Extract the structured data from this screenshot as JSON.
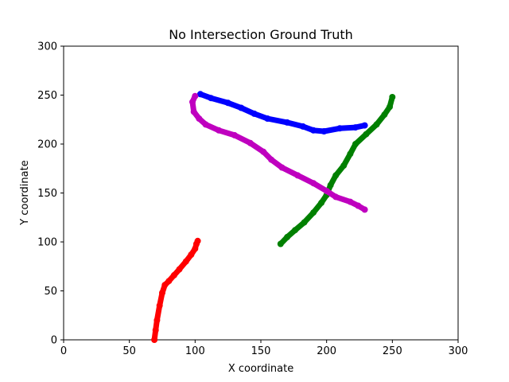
{
  "chart_data": {
    "type": "scatter",
    "title": "No Intersection Ground Truth",
    "xlabel": "X coordinate",
    "ylabel": "Y coordinate",
    "xlim": [
      0,
      300
    ],
    "ylim": [
      0,
      300
    ],
    "xticks": [
      0,
      50,
      100,
      150,
      200,
      250,
      300
    ],
    "yticks": [
      0,
      50,
      100,
      150,
      200,
      250,
      300
    ],
    "grid": false,
    "legend": "none",
    "series": [
      {
        "color": "#ff0000",
        "points": [
          [
            69,
            0
          ],
          [
            70,
            10
          ],
          [
            71,
            20
          ],
          [
            73,
            35
          ],
          [
            75,
            48
          ],
          [
            77,
            56
          ],
          [
            80,
            60
          ],
          [
            84,
            66
          ],
          [
            88,
            72
          ],
          [
            93,
            80
          ],
          [
            97,
            87
          ],
          [
            100,
            93
          ],
          [
            101,
            98
          ],
          [
            102,
            101
          ]
        ]
      },
      {
        "color": "#008000",
        "points": [
          [
            165,
            98
          ],
          [
            170,
            105
          ],
          [
            176,
            112
          ],
          [
            183,
            120
          ],
          [
            190,
            130
          ],
          [
            196,
            140
          ],
          [
            200,
            148
          ],
          [
            203,
            158
          ],
          [
            207,
            168
          ],
          [
            213,
            178
          ],
          [
            218,
            190
          ],
          [
            222,
            200
          ],
          [
            230,
            210
          ],
          [
            238,
            220
          ],
          [
            244,
            230
          ],
          [
            248,
            238
          ],
          [
            250,
            248
          ]
        ]
      },
      {
        "color": "#0000ff",
        "points": [
          [
            104,
            251
          ],
          [
            112,
            247
          ],
          [
            125,
            242
          ],
          [
            135,
            237
          ],
          [
            145,
            231
          ],
          [
            155,
            226
          ],
          [
            170,
            222
          ],
          [
            182,
            218
          ],
          [
            190,
            214
          ],
          [
            198,
            213
          ],
          [
            210,
            216
          ],
          [
            222,
            217
          ],
          [
            229,
            219
          ]
        ]
      },
      {
        "color": "#bf00bf",
        "points": [
          [
            100,
            249
          ],
          [
            98,
            243
          ],
          [
            99,
            233
          ],
          [
            103,
            226
          ],
          [
            108,
            220
          ],
          [
            118,
            214
          ],
          [
            130,
            209
          ],
          [
            142,
            201
          ],
          [
            152,
            192
          ],
          [
            158,
            184
          ],
          [
            166,
            176
          ],
          [
            178,
            168
          ],
          [
            190,
            160
          ],
          [
            200,
            152
          ],
          [
            207,
            146
          ],
          [
            218,
            141
          ],
          [
            224,
            137
          ],
          [
            229,
            133
          ]
        ]
      }
    ]
  }
}
